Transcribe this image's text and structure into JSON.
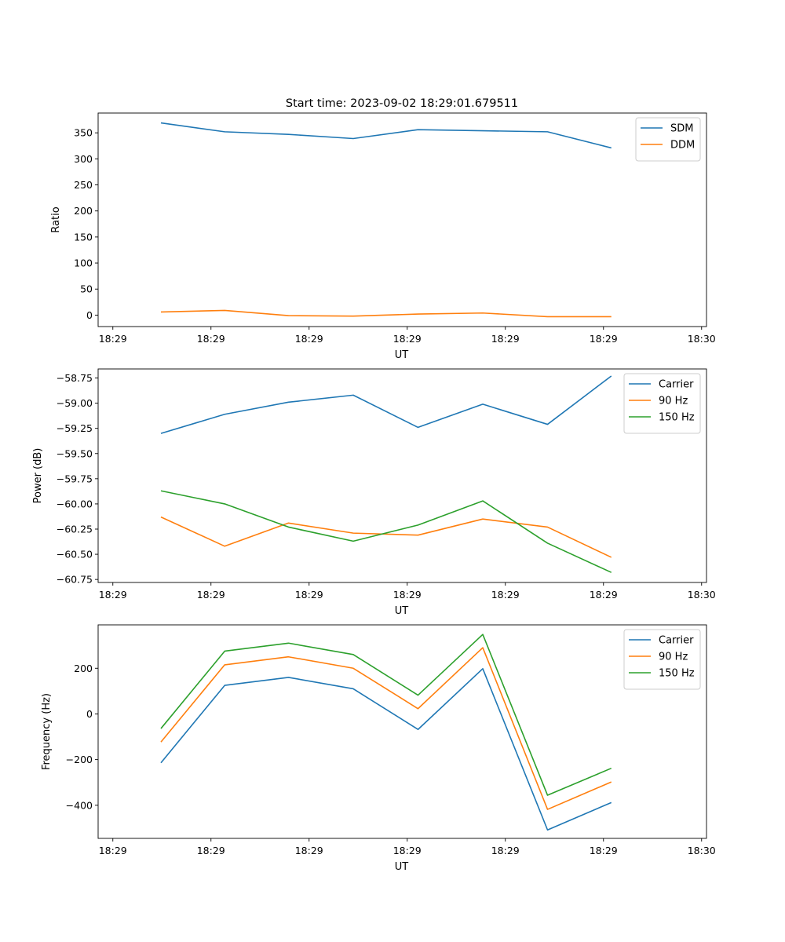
{
  "title": "Start time: 2023-09-02 18:29:01.679511",
  "colors": {
    "blue": "#1f77b4",
    "orange": "#ff7f0e",
    "green": "#2ca02c"
  },
  "chart_data": [
    {
      "type": "line",
      "xlabel": "UT",
      "ylabel": "Ratio",
      "x_tick_labels": [
        "18:29",
        "18:29",
        "18:29",
        "18:29",
        "18:29",
        "18:29",
        "18:30"
      ],
      "xlim": [
        -0.15,
        6.05
      ],
      "ylim": [
        -22,
        388
      ],
      "yticks": [
        0,
        50,
        100,
        150,
        200,
        250,
        300,
        350
      ],
      "ytick_labels": [
        "0",
        "50",
        "100",
        "150",
        "200",
        "250",
        "300",
        "350"
      ],
      "legend": "top-right",
      "x": [
        0.49,
        1.14,
        1.79,
        2.45,
        3.11,
        3.77,
        4.43,
        5.08
      ],
      "series": [
        {
          "name": "SDM",
          "color": "#1f77b4",
          "values": [
            369,
            352,
            347,
            339,
            356,
            354,
            352,
            321
          ]
        },
        {
          "name": "DDM",
          "color": "#ff7f0e",
          "values": [
            6,
            9,
            -1,
            -2,
            2,
            4,
            -3,
            -3
          ]
        }
      ]
    },
    {
      "type": "line",
      "xlabel": "UT",
      "ylabel": "Power (dB)",
      "x_tick_labels": [
        "18:29",
        "18:29",
        "18:29",
        "18:29",
        "18:29",
        "18:29",
        "18:30"
      ],
      "xlim": [
        -0.15,
        6.05
      ],
      "ylim": [
        -60.78,
        -58.66
      ],
      "yticks": [
        -60.75,
        -60.5,
        -60.25,
        -60.0,
        -59.75,
        -59.5,
        -59.25,
        -59.0,
        -58.75
      ],
      "ytick_labels": [
        "−60.75",
        "−60.50",
        "−60.25",
        "−60.00",
        "−59.75",
        "−59.50",
        "−59.25",
        "−59.00",
        "−58.75"
      ],
      "legend": "top-right",
      "x": [
        0.49,
        1.14,
        1.79,
        2.45,
        3.11,
        3.77,
        4.43,
        5.08
      ],
      "series": [
        {
          "name": "Carrier",
          "color": "#1f77b4",
          "values": [
            -59.3,
            -59.11,
            -58.99,
            -58.92,
            -59.24,
            -59.01,
            -59.21,
            -58.73
          ]
        },
        {
          "name": "90 Hz",
          "color": "#ff7f0e",
          "values": [
            -60.13,
            -60.42,
            -60.19,
            -60.29,
            -60.31,
            -60.15,
            -60.23,
            -60.53
          ]
        },
        {
          "name": "150 Hz",
          "color": "#2ca02c",
          "values": [
            -59.87,
            -60.0,
            -60.23,
            -60.37,
            -60.21,
            -59.97,
            -60.39,
            -60.68
          ]
        }
      ]
    },
    {
      "type": "line",
      "xlabel": "UT",
      "ylabel": "Frequency (Hz)",
      "x_tick_labels": [
        "18:29",
        "18:29",
        "18:29",
        "18:29",
        "18:29",
        "18:29",
        "18:30"
      ],
      "xlim": [
        -0.15,
        6.05
      ],
      "ylim": [
        -545,
        390
      ],
      "yticks": [
        -400,
        -200,
        0,
        200
      ],
      "ytick_labels": [
        "−400",
        "−200",
        "0",
        "200"
      ],
      "legend": "top-right",
      "x": [
        0.49,
        1.14,
        1.79,
        2.45,
        3.11,
        3.77,
        4.43,
        5.08
      ],
      "series": [
        {
          "name": "Carrier",
          "color": "#1f77b4",
          "values": [
            -214,
            125,
            160,
            110,
            -68,
            198,
            -508,
            -388
          ]
        },
        {
          "name": "90 Hz",
          "color": "#ff7f0e",
          "values": [
            -123,
            215,
            250,
            200,
            23,
            290,
            -418,
            -298
          ]
        },
        {
          "name": "150 Hz",
          "color": "#2ca02c",
          "values": [
            -64,
            275,
            310,
            260,
            82,
            348,
            -356,
            -238
          ]
        }
      ]
    }
  ]
}
